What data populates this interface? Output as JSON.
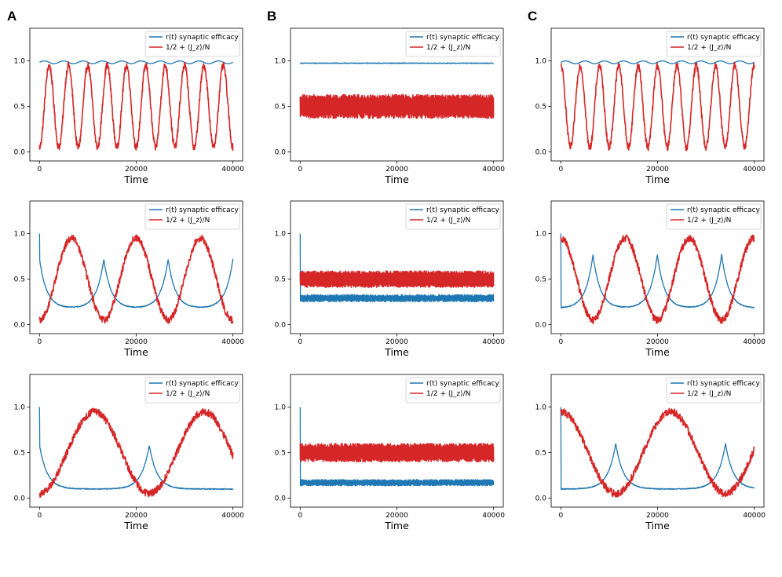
{
  "figure": {
    "panel_letters": [
      "A",
      "B",
      "C"
    ]
  },
  "legend": {
    "efficacy_label": "r(t) synaptic efficacy",
    "jz_label": "1/2 + ⟨J_z⟩/N"
  },
  "colors": {
    "efficacy": "#1f77b4",
    "jz": "#d62728",
    "axes": "#000000",
    "legend_border": "#cccccc"
  },
  "chart_data": [
    {
      "id": "A1",
      "column": "A",
      "row": 1,
      "type": "line",
      "xlabel": "Time",
      "xlim": [
        0,
        40000
      ],
      "ylim": [
        0,
        1
      ],
      "xticks": [
        0,
        20000,
        40000
      ],
      "yticks": [
        "0.0",
        "0.5",
        "1.0"
      ],
      "legend": "top-right",
      "series": [
        {
          "name": "r(t) synaptic efficacy",
          "model": {
            "kind": "ripple",
            "base": 0.985,
            "amp": 0.015,
            "period": 4000
          }
        },
        {
          "name": "1/2 + ⟨J_z⟩/N",
          "model": {
            "kind": "sine",
            "mid": 0.5,
            "amp": 0.45,
            "period": 4000,
            "phase": -1.5708,
            "noise": 0.04
          }
        }
      ]
    },
    {
      "id": "B1",
      "column": "B",
      "row": 1,
      "type": "line",
      "xlabel": "Time",
      "xlim": [
        0,
        40000
      ],
      "ylim": [
        0,
        1
      ],
      "xticks": [
        0,
        20000,
        40000
      ],
      "yticks": [
        "0.0",
        "0.5",
        "1.0"
      ],
      "legend": "top-right",
      "series": [
        {
          "name": "r(t) synaptic efficacy",
          "model": {
            "kind": "flat",
            "level": 0.975,
            "noise": 0.004
          }
        },
        {
          "name": "1/2 + ⟨J_z⟩/N",
          "model": {
            "kind": "band",
            "mid": 0.5,
            "halfwidth": 0.13
          }
        }
      ]
    },
    {
      "id": "C1",
      "column": "C",
      "row": 1,
      "type": "line",
      "xlabel": "Time",
      "xlim": [
        0,
        40000
      ],
      "ylim": [
        0,
        1
      ],
      "xticks": [
        0,
        20000,
        40000
      ],
      "yticks": [
        "0.0",
        "0.5",
        "1.0"
      ],
      "legend": "top-right",
      "series": [
        {
          "name": "r(t) synaptic efficacy",
          "model": {
            "kind": "ripple",
            "base": 0.985,
            "amp": 0.015,
            "period": 4000
          }
        },
        {
          "name": "1/2 + ⟨J_z⟩/N",
          "model": {
            "kind": "sine",
            "mid": 0.5,
            "amp": 0.45,
            "period": 4000,
            "phase": 1.5708,
            "noise": 0.04
          }
        }
      ]
    },
    {
      "id": "A2",
      "column": "A",
      "row": 2,
      "type": "line",
      "xlabel": "Time",
      "xlim": [
        0,
        40000
      ],
      "ylim": [
        0,
        1
      ],
      "xticks": [
        0,
        20000,
        40000
      ],
      "yticks": [
        "0.0",
        "0.5",
        "1.0"
      ],
      "legend": "top-right",
      "series": [
        {
          "name": "r(t) synaptic efficacy",
          "model": {
            "kind": "spikes",
            "start": 1.0,
            "base": 0.18,
            "peak": 0.72,
            "centers": [
              0,
              13300,
              26600,
              40000
            ],
            "width": 1500
          }
        },
        {
          "name": "1/2 + ⟨J_z⟩/N",
          "model": {
            "kind": "sine",
            "mid": 0.5,
            "amp": 0.45,
            "period": 13300,
            "phase": -1.5708,
            "noise": 0.04
          }
        }
      ]
    },
    {
      "id": "B2",
      "column": "B",
      "row": 2,
      "type": "line",
      "xlabel": "Time",
      "xlim": [
        0,
        40000
      ],
      "ylim": [
        0,
        1
      ],
      "xticks": [
        0,
        20000,
        40000
      ],
      "yticks": [
        "0.0",
        "0.5",
        "1.0"
      ],
      "legend": "top-right",
      "series": [
        {
          "name": "r(t) synaptic efficacy",
          "model": {
            "kind": "noisy_flat",
            "start": 1.0,
            "mid": 0.29,
            "halfwidth": 0.04
          }
        },
        {
          "name": "1/2 + ⟨J_z⟩/N",
          "model": {
            "kind": "band",
            "mid": 0.5,
            "halfwidth": 0.09
          }
        }
      ]
    },
    {
      "id": "C2",
      "column": "C",
      "row": 2,
      "type": "line",
      "xlabel": "Time",
      "xlim": [
        0,
        40000
      ],
      "ylim": [
        0,
        1
      ],
      "xticks": [
        0,
        20000,
        40000
      ],
      "yticks": [
        "0.0",
        "0.5",
        "1.0"
      ],
      "legend": "top-right",
      "series": [
        {
          "name": "r(t) synaptic efficacy",
          "model": {
            "kind": "spikes",
            "start": 1.0,
            "base": 0.18,
            "peak": 0.77,
            "centers": [
              6650,
              19950,
              33250
            ],
            "width": 1500
          }
        },
        {
          "name": "1/2 + ⟨J_z⟩/N",
          "model": {
            "kind": "sine",
            "mid": 0.5,
            "amp": 0.45,
            "period": 13300,
            "phase": 1.5708,
            "noise": 0.04
          }
        }
      ]
    },
    {
      "id": "A3",
      "column": "A",
      "row": 3,
      "type": "line",
      "xlabel": "Time",
      "xlim": [
        0,
        40000
      ],
      "ylim": [
        0,
        1
      ],
      "xticks": [
        0,
        20000,
        40000
      ],
      "yticks": [
        "0.0",
        "0.5",
        "1.0"
      ],
      "legend": "top-right",
      "series": [
        {
          "name": "r(t) synaptic efficacy",
          "model": {
            "kind": "spikes",
            "start": 1.0,
            "base": 0.1,
            "peak": 0.58,
            "centers": [
              0,
              22700
            ],
            "width": 1600
          }
        },
        {
          "name": "1/2 + ⟨J_z⟩/N",
          "model": {
            "kind": "sine",
            "mid": 0.5,
            "amp": 0.45,
            "period": 22700,
            "phase": -1.5708,
            "noise": 0.04
          }
        }
      ]
    },
    {
      "id": "B3",
      "column": "B",
      "row": 3,
      "type": "line",
      "xlabel": "Time",
      "xlim": [
        0,
        40000
      ],
      "ylim": [
        0,
        1
      ],
      "xticks": [
        0,
        20000,
        40000
      ],
      "yticks": [
        "0.0",
        "0.5",
        "1.0"
      ],
      "legend": "top-right",
      "series": [
        {
          "name": "r(t) synaptic efficacy",
          "model": {
            "kind": "noisy_flat",
            "start": 1.0,
            "mid": 0.17,
            "halfwidth": 0.035
          }
        },
        {
          "name": "1/2 + ⟨J_z⟩/N",
          "model": {
            "kind": "band",
            "mid": 0.5,
            "halfwidth": 0.1
          }
        }
      ]
    },
    {
      "id": "C3",
      "column": "C",
      "row": 3,
      "type": "line",
      "xlabel": "Time",
      "xlim": [
        0,
        40000
      ],
      "ylim": [
        0,
        1
      ],
      "xticks": [
        0,
        20000,
        40000
      ],
      "yticks": [
        "0.0",
        "0.5",
        "1.0"
      ],
      "legend": "top-right",
      "series": [
        {
          "name": "r(t) synaptic efficacy",
          "model": {
            "kind": "spikes",
            "start": 1.0,
            "base": 0.1,
            "peak": 0.6,
            "centers": [
              11350,
              34050
            ],
            "width": 1600
          }
        },
        {
          "name": "1/2 + ⟨J_z⟩/N",
          "model": {
            "kind": "sine",
            "mid": 0.5,
            "amp": 0.45,
            "period": 22700,
            "phase": 1.5708,
            "noise": 0.04
          }
        }
      ]
    }
  ]
}
